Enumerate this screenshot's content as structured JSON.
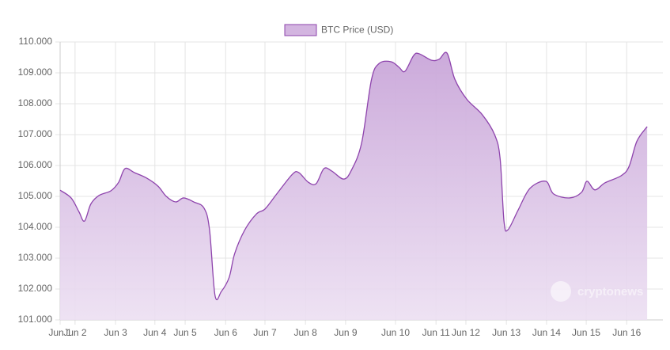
{
  "chart_data": {
    "type": "area",
    "series": [
      {
        "name": "BTC Price (USD)",
        "color": "#8e44ad",
        "x": [
          1.0,
          1.28,
          1.48,
          1.62,
          1.78,
          1.99,
          2.29,
          2.49,
          2.65,
          2.89,
          3.19,
          3.49,
          3.7,
          3.94,
          4.14,
          4.4,
          4.66,
          4.8,
          4.94,
          5.1,
          5.3,
          5.44,
          5.7,
          6.0,
          6.21,
          6.51,
          6.91,
          7.07,
          7.31,
          7.51,
          7.71,
          7.91,
          8.21,
          8.41,
          8.67,
          8.92,
          9.12,
          9.42,
          9.62,
          9.77,
          9.99,
          10.13,
          10.44,
          10.64,
          10.84,
          11.04,
          11.34,
          11.74,
          12.05,
          12.19,
          12.29,
          12.39,
          12.65,
          12.95,
          13.35,
          13.55,
          13.96,
          14.26,
          14.4,
          14.6,
          14.86,
          15.27,
          15.47,
          15.67,
          15.93
        ],
        "values": [
          105200,
          104950,
          104500,
          104200,
          104750,
          105030,
          105180,
          105460,
          105900,
          105770,
          105600,
          105330,
          105000,
          104820,
          104950,
          104820,
          104620,
          103920,
          101790,
          101920,
          102380,
          103150,
          103920,
          104440,
          104590,
          105080,
          105720,
          105770,
          105460,
          105410,
          105900,
          105820,
          105560,
          105850,
          106740,
          108790,
          109310,
          109360,
          109180,
          109050,
          109560,
          109620,
          109410,
          109440,
          109640,
          108790,
          108150,
          107640,
          107000,
          106230,
          104180,
          103920,
          104560,
          105260,
          105490,
          105080,
          104950,
          105130,
          105490,
          105210,
          105440,
          105670,
          105970,
          106790,
          107260
        ]
      }
    ],
    "xlim": [
      1,
      16.33
    ],
    "xticks": [
      {
        "value": 1,
        "label": "Jun 1"
      },
      {
        "value": 1.38,
        "label": "Jun 2"
      },
      {
        "value": 2.41,
        "label": "Jun 3"
      },
      {
        "value": 3.41,
        "label": "Jun 4"
      },
      {
        "value": 4.18,
        "label": "Jun 5"
      },
      {
        "value": 5.21,
        "label": "Jun 6"
      },
      {
        "value": 6.21,
        "label": "Jun 7"
      },
      {
        "value": 7.24,
        "label": "Jun 8"
      },
      {
        "value": 8.26,
        "label": "Jun 9"
      },
      {
        "value": 9.53,
        "label": "Jun 10"
      },
      {
        "value": 10.56,
        "label": "Jun 11"
      },
      {
        "value": 11.32,
        "label": "Jun 12"
      },
      {
        "value": 12.35,
        "label": "Jun 13"
      },
      {
        "value": 13.37,
        "label": "Jun 14"
      },
      {
        "value": 14.38,
        "label": "Jun 15"
      },
      {
        "value": 15.41,
        "label": "Jun 16"
      }
    ],
    "ylim": [
      101000,
      110000
    ],
    "yticks": [
      {
        "value": 101000,
        "label": "101.000"
      },
      {
        "value": 102000,
        "label": "102.000"
      },
      {
        "value": 103000,
        "label": "103.000"
      },
      {
        "value": 104000,
        "label": "104.000"
      },
      {
        "value": 105000,
        "label": "105.000"
      },
      {
        "value": 106000,
        "label": "106.000"
      },
      {
        "value": 107000,
        "label": "107.000"
      },
      {
        "value": 108000,
        "label": "108.000"
      },
      {
        "value": 109000,
        "label": "109.000"
      },
      {
        "value": 110000,
        "label": "110.000"
      }
    ],
    "grid": true,
    "legend": "top",
    "watermark": "cryptonews"
  }
}
